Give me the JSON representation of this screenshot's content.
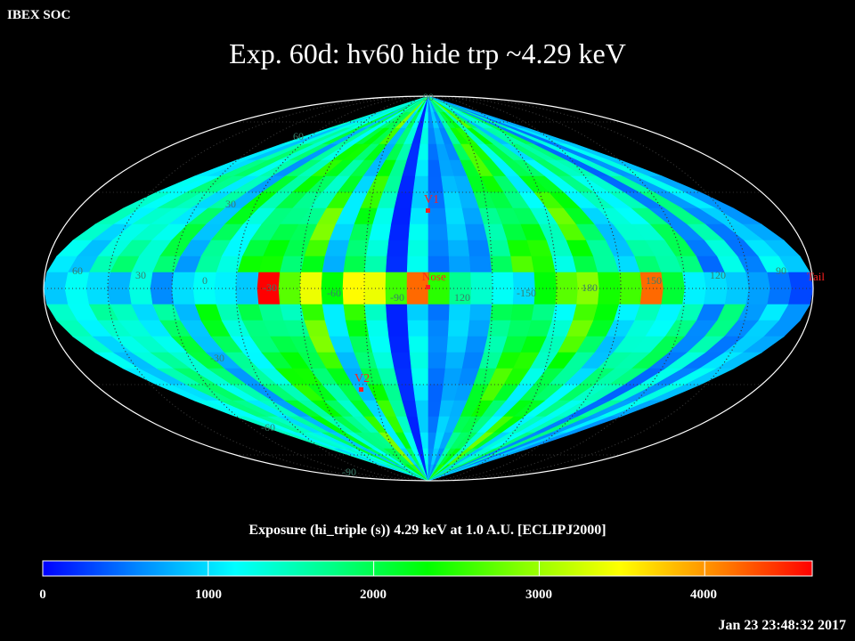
{
  "header": {
    "soc_label": "IBEX SOC",
    "title": "Exp.   60d: hv60 hide trp ~4.29 keV"
  },
  "map": {
    "projection": "Mollweide (ecliptic)",
    "graticule_lat_labels": [
      "90",
      "60",
      "30",
      "-30",
      "-60",
      "-90"
    ],
    "graticule_lon_labels": [
      "60",
      "30",
      "0",
      "-30",
      "-60",
      "-90",
      "120",
      "-150",
      "180",
      "150",
      "120",
      "90"
    ],
    "markers": [
      {
        "label": "V1",
        "color": "#ff2020"
      },
      {
        "label": "Nose",
        "color": "#ff2020"
      },
      {
        "label": "V2",
        "color": "#ff2020"
      },
      {
        "label": "Tail",
        "color": "#ff2020"
      }
    ],
    "stripe_values": [
      1500,
      1200,
      1800,
      1900,
      1400,
      2100,
      900,
      2300,
      1600,
      2500,
      2400,
      2000,
      2900,
      1100,
      2600,
      1700,
      200,
      1300,
      600,
      1000,
      800,
      2200,
      2700,
      2500,
      1500,
      2800,
      2300,
      1200,
      1900,
      1600,
      2000,
      600,
      1800,
      700,
      1300,
      900
    ],
    "ecliptic_band_values": [
      900,
      1200,
      1000,
      800,
      1300,
      600,
      1000,
      1200,
      1100,
      900,
      4650,
      2700,
      3400,
      2300,
      3500,
      3400,
      2600,
      4200,
      2500,
      1700,
      1400,
      1200,
      1000,
      2300,
      2700,
      2900,
      2400,
      2600,
      4200,
      2100,
      1100,
      1000,
      900,
      700,
      500,
      300
    ],
    "colors": {
      "graticule": "#333333",
      "marker": "#ff2020",
      "edge": "#ffffff"
    }
  },
  "colorbar": {
    "caption": "Exposure (hi_triple (s))  4.29 keV at 1.0 A.U. [ECLIPJ2000]",
    "range": [
      0,
      4650
    ],
    "tick_labels": [
      "0",
      "1000",
      "2000",
      "3000",
      "4000"
    ],
    "stops": [
      "#0000ff",
      "#0088ff",
      "#00ffff",
      "#00ff88",
      "#00ff00",
      "#88ff00",
      "#ffff00",
      "#ff8800",
      "#ff0000"
    ]
  },
  "timestamp": "Jan 23 23:48:32 2017"
}
